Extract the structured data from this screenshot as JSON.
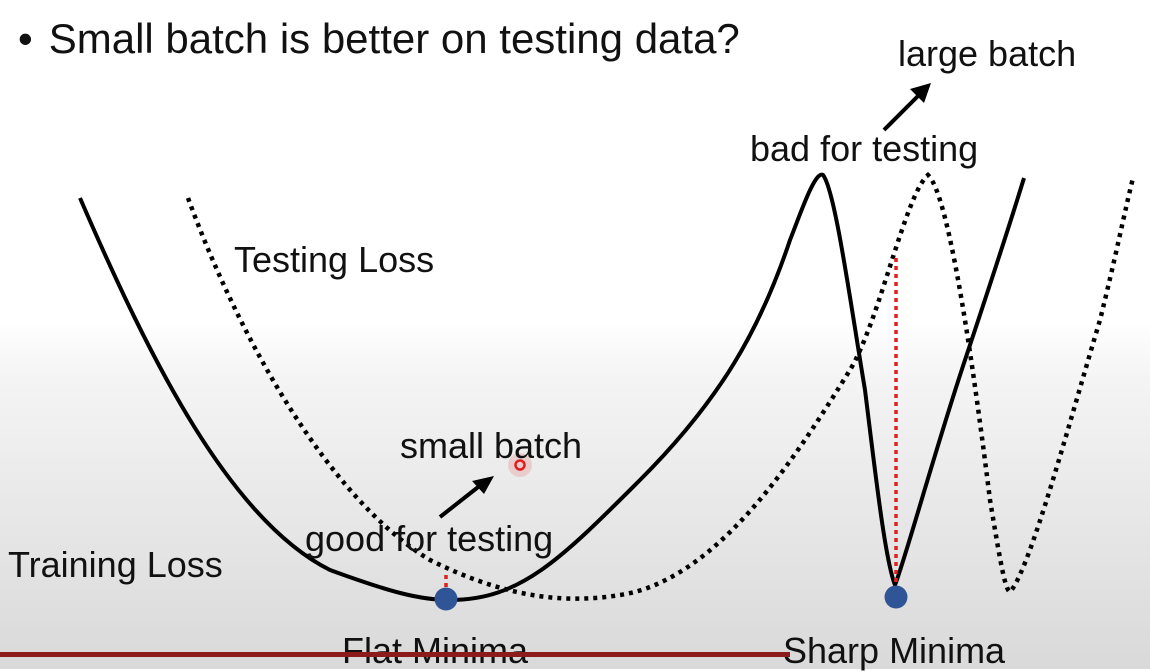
{
  "slide": {
    "title": "Small batch is better on testing data?",
    "bullet": "•"
  },
  "labels": {
    "large_batch": "large batch",
    "bad_for_testing": "bad for testing",
    "testing_loss": "Testing Loss",
    "small_batch": "small batch",
    "good_for_testing": "good for testing",
    "training_loss": "Training Loss",
    "flat_minima": "Flat Minima",
    "sharp_minima": "Sharp Minima"
  },
  "colors": {
    "curve": "#000000",
    "gap_line": "#e02020",
    "minima_point": "#2f5597",
    "cursor": "#e02020",
    "bottom_bar": "#8e1b1b"
  }
}
